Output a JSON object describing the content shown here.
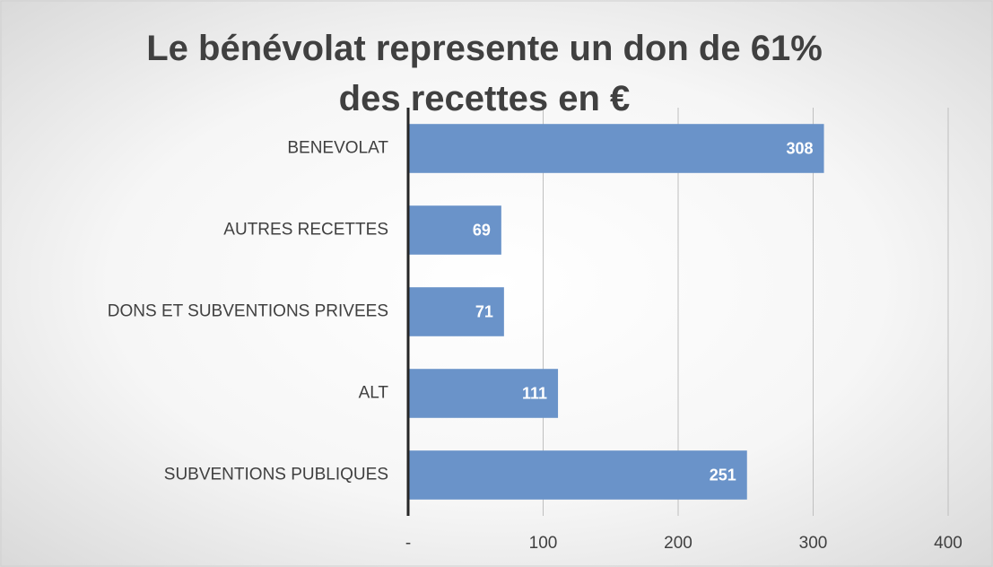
{
  "chart_data": {
    "type": "bar",
    "orientation": "horizontal",
    "title": "Le bénévolat represente un don de 61% des recettes en €",
    "categories": [
      "BENEVOLAT",
      "AUTRES RECETTES",
      "DONS ET SUBVENTIONS PRIVEES",
      "ALT",
      "SUBVENTIONS PUBLIQUES"
    ],
    "values": [
      308,
      69,
      71,
      111,
      251
    ],
    "color": "#6a93c9",
    "xlim": [
      0,
      400
    ],
    "xticks": [
      {
        "value": 0,
        "label": "-"
      },
      100,
      200,
      300,
      400
    ],
    "grid": true
  }
}
